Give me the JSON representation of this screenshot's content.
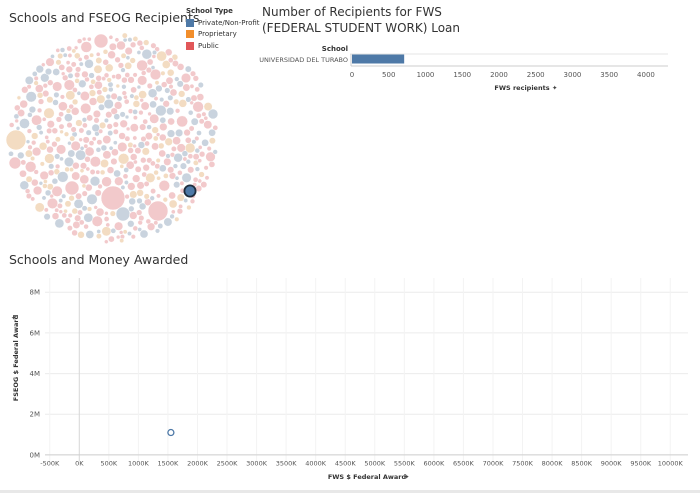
{
  "titles": {
    "bubble": "Schools and FSEOG Recipients",
    "fws_line1": "Number of Recipients for FWS",
    "fws_line2": "(FEDERAL STUDENT WORK) Loan",
    "scatter": "Schools and Money Awarded"
  },
  "legend": {
    "title": "School Type",
    "items": [
      {
        "label": "Private/Non-Profit",
        "color": "#4e79a7"
      },
      {
        "label": "Proprietary",
        "color": "#f28e2b"
      },
      {
        "label": "Public",
        "color": "#e15759"
      }
    ]
  },
  "chart_data": [
    {
      "type": "bubble",
      "title": "Schools and FSEOG Recipients",
      "note": "packed bubbles, one per school; sizes by FSEOG recipients; one highlighted (selected) bubble",
      "colors_by_type": {
        "Private/Non-Profit": "#4e79a7",
        "Proprietary": "#f28e2b",
        "Public": "#e15759"
      }
    },
    {
      "type": "bar",
      "title": "Number of Recipients for FWS (FEDERAL STUDENT WORK) Loan",
      "row_header": "School",
      "categories": [
        "UNIVERSIDAD DEL TURABO"
      ],
      "values": [
        710
      ],
      "xlabel": "FWS recipients",
      "xlim": [
        0,
        4300
      ],
      "xticks": [
        0,
        500,
        1000,
        1500,
        2000,
        2500,
        3000,
        3500,
        4000
      ],
      "xtick_labels": [
        "0",
        "500",
        "1000",
        "1500",
        "2000",
        "2500",
        "3000",
        "3500",
        "4000"
      ],
      "color": "#4e79a7"
    },
    {
      "type": "scatter",
      "title": "Schools and Money Awarded",
      "xlabel": "FWS $ Federal Award",
      "ylabel": "FSEOG $ Federal Award",
      "xlim": [
        -580000,
        10300000
      ],
      "ylim": [
        -300000,
        8700000
      ],
      "xticks": [
        -500000,
        0,
        500000,
        1000000,
        1500000,
        2000000,
        2500000,
        3000000,
        3500000,
        4000000,
        4500000,
        5000000,
        5500000,
        6000000,
        6500000,
        7000000,
        7500000,
        8000000,
        8500000,
        9000000,
        9500000,
        10000000
      ],
      "xtick_labels": [
        "-500K",
        "0K",
        "500K",
        "1000K",
        "1500K",
        "2000K",
        "2500K",
        "3000K",
        "3500K",
        "4000K",
        "4500K",
        "5000K",
        "5500K",
        "6000K",
        "6500K",
        "7000K",
        "7500K",
        "8000K",
        "8500K",
        "9000K",
        "9500K",
        "10000K"
      ],
      "yticks": [
        0,
        2000000,
        4000000,
        6000000,
        8000000
      ],
      "ytick_labels": [
        "0M",
        "2M",
        "4M",
        "6M",
        "8M"
      ],
      "points": [
        {
          "x": 1550000,
          "y": 1100000
        }
      ],
      "color": "#4e79a7"
    }
  ]
}
